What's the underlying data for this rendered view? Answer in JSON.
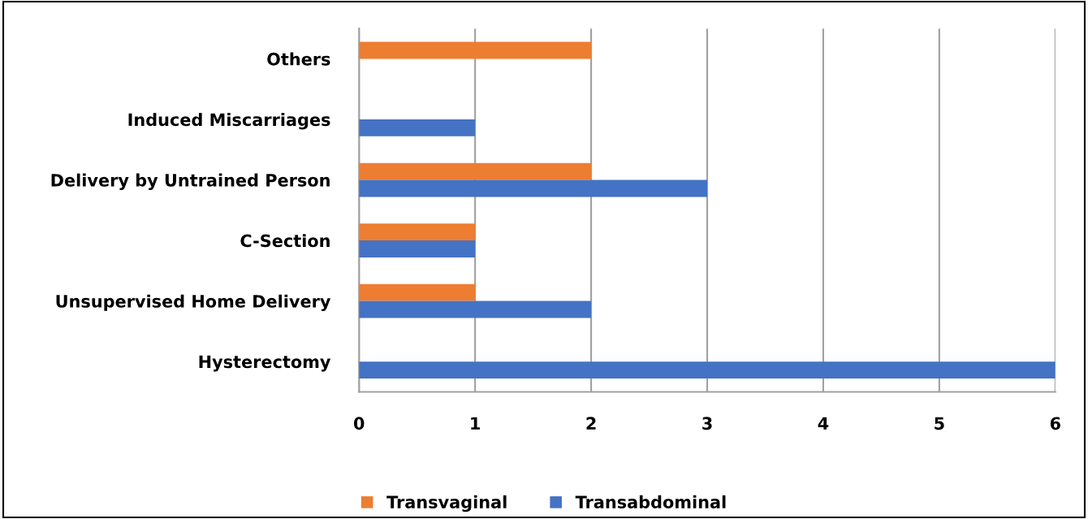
{
  "chart_data": {
    "type": "bar",
    "orientation": "horizontal",
    "categories": [
      "Others",
      "Induced Miscarriages",
      "Delivery by Untrained Person",
      "C-Section",
      "Unsupervised Home Delivery",
      "Hysterectomy"
    ],
    "series": [
      {
        "name": "Transvaginal",
        "color": "#ed7d31",
        "values": [
          2,
          0,
          2,
          1,
          1,
          0
        ]
      },
      {
        "name": "Transabdominal",
        "color": "#4472c4",
        "values": [
          0,
          1,
          3,
          1,
          2,
          6
        ]
      }
    ],
    "xlim": [
      0,
      6
    ],
    "xticks": [
      0,
      1,
      2,
      3,
      4,
      5,
      6
    ],
    "grid": "x",
    "legend": "bottom"
  }
}
